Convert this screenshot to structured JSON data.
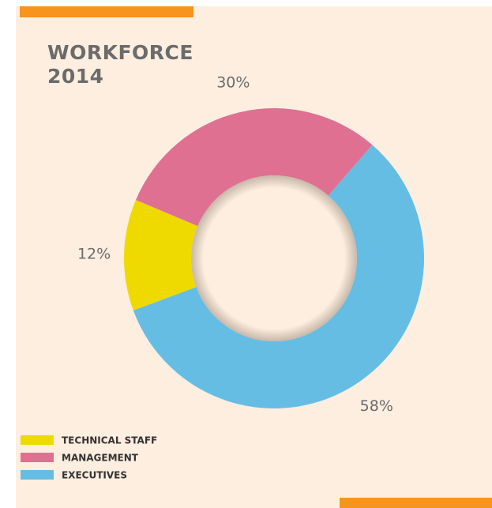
{
  "chart_data": {
    "type": "donut",
    "title": "WORKFORCE 2014",
    "categories": [
      "TECHNICAL STAFF",
      "MANAGEMENT",
      "EXECUTIVES"
    ],
    "values": [
      12,
      30,
      58
    ],
    "value_labels": [
      "12%",
      "30%",
      "58%"
    ],
    "colors": [
      "#efda00",
      "#df7092",
      "#66bde3"
    ],
    "legend": "bottom-left"
  }
}
